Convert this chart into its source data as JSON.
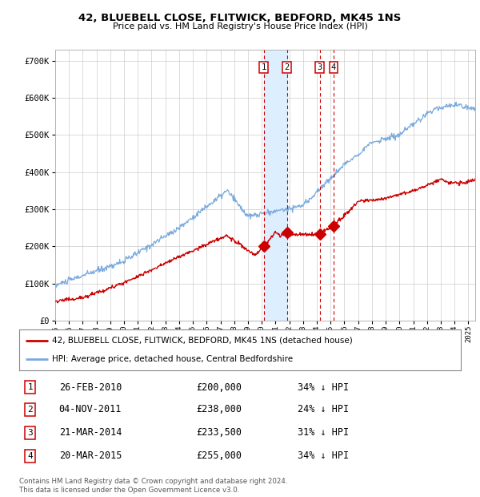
{
  "title": "42, BLUEBELL CLOSE, FLITWICK, BEDFORD, MK45 1NS",
  "subtitle": "Price paid vs. HM Land Registry's House Price Index (HPI)",
  "legend_line1": "42, BLUEBELL CLOSE, FLITWICK, BEDFORD, MK45 1NS (detached house)",
  "legend_line2": "HPI: Average price, detached house, Central Bedfordshire",
  "footer1": "Contains HM Land Registry data © Crown copyright and database right 2024.",
  "footer2": "This data is licensed under the Open Government Licence v3.0.",
  "red_color": "#cc0000",
  "blue_color": "#7aaadd",
  "shade_color": "#ddeeff",
  "yticks": [
    0,
    100000,
    200000,
    300000,
    400000,
    500000,
    600000,
    700000
  ],
  "ytick_labels": [
    "£0",
    "£100K",
    "£200K",
    "£300K",
    "£400K",
    "£500K",
    "£600K",
    "£700K"
  ],
  "transactions": [
    {
      "num": 1,
      "date": "26-FEB-2010",
      "price": 200000,
      "pct": "34%",
      "year_x": 2010.15
    },
    {
      "num": 2,
      "date": "04-NOV-2011",
      "price": 238000,
      "pct": "24%",
      "year_x": 2011.84
    },
    {
      "num": 3,
      "date": "21-MAR-2014",
      "price": 233500,
      "pct": "31%",
      "year_x": 2014.22
    },
    {
      "num": 4,
      "date": "20-MAR-2015",
      "price": 255000,
      "pct": "34%",
      "year_x": 2015.22
    }
  ],
  "shade_x_start": 2010.15,
  "shade_x_end": 2011.84,
  "xmin": 1995.0,
  "xmax": 2025.5,
  "ymin": 0,
  "ymax": 730000
}
